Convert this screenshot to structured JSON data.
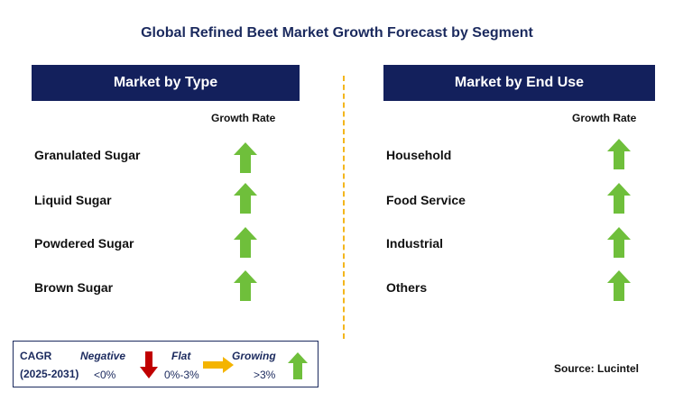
{
  "title": "Global Refined Beet Market Growth Forecast by Segment",
  "left_panel": {
    "header": "Market by Type",
    "column_label": "Growth Rate",
    "rows": [
      {
        "label": "Granulated Sugar",
        "trend": "growing"
      },
      {
        "label": "Liquid Sugar",
        "trend": "growing"
      },
      {
        "label": "Powdered Sugar",
        "trend": "growing"
      },
      {
        "label": "Brown Sugar",
        "trend": "growing"
      }
    ]
  },
  "right_panel": {
    "header": "Market by End Use",
    "column_label": "Growth Rate",
    "rows": [
      {
        "label": "Household",
        "trend": "growing"
      },
      {
        "label": "Food Service",
        "trend": "growing"
      },
      {
        "label": "Industrial",
        "trend": "growing"
      },
      {
        "label": "Others",
        "trend": "growing"
      }
    ]
  },
  "legend": {
    "cagr_label": "CAGR",
    "period": "(2025-2031)",
    "negative": {
      "label": "Negative",
      "range": "<0%",
      "icon": "down-arrow-icon",
      "color": "#c00000"
    },
    "flat": {
      "label": "Flat",
      "range": "0%-3%",
      "icon": "right-arrow-icon",
      "color": "#f4b400"
    },
    "growing": {
      "label": "Growing",
      "range": ">3%",
      "icon": "up-arrow-icon",
      "color": "#6fbf3b"
    }
  },
  "source": "Source: Lucintel",
  "colors": {
    "header_bg": "#13205c",
    "title": "#1b2a5e",
    "divider": "#f3b61d",
    "growth_arrow": "#6fbf3b"
  }
}
